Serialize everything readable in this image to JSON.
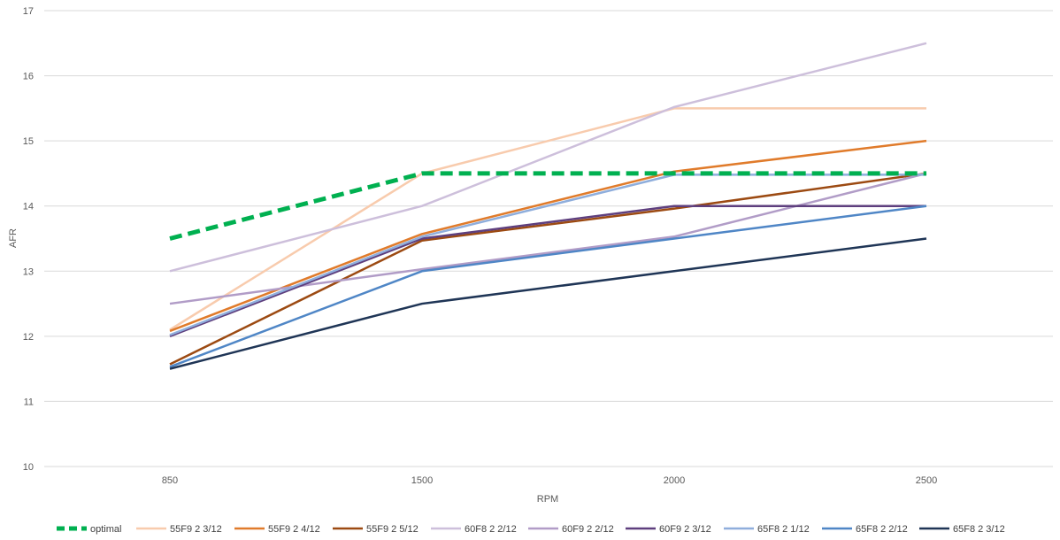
{
  "chart_data": {
    "type": "line",
    "title": "",
    "xlabel": "RPM",
    "ylabel": "AFR",
    "categories": [
      "850",
      "1500",
      "2000",
      "2500"
    ],
    "ylim": [
      10,
      17
    ],
    "yticks": [
      "10",
      "11",
      "12",
      "13",
      "14",
      "15",
      "16",
      "17"
    ],
    "grid": true,
    "legend_position": "bottom",
    "series": [
      {
        "name": "optimal",
        "values": [
          13.5,
          14.5,
          14.5,
          14.5
        ],
        "color": "#00B050",
        "dashed": true
      },
      {
        "name": "55F9 2 3/12",
        "values": [
          12.1,
          14.5,
          15.5,
          15.5
        ],
        "color": "#F8CBAD",
        "dashed": false
      },
      {
        "name": "55F9 2 4/12",
        "values": [
          12.08,
          13.57,
          14.53,
          15.0
        ],
        "color": "#E07B2B",
        "dashed": false
      },
      {
        "name": "55F9 2 5/12",
        "values": [
          11.57,
          13.47,
          13.96,
          14.5
        ],
        "color": "#9C4A12",
        "dashed": false
      },
      {
        "name": "60F8 2 2/12",
        "values": [
          13.0,
          14.0,
          15.52,
          16.5
        ],
        "color": "#CDBFDB",
        "dashed": false
      },
      {
        "name": "60F9 2 2/12",
        "values": [
          12.5,
          13.03,
          13.53,
          14.5
        ],
        "color": "#B19CC7",
        "dashed": false
      },
      {
        "name": "60F9 2 3/12",
        "values": [
          12.0,
          13.5,
          14.0,
          14.0
        ],
        "color": "#5E3F7E",
        "dashed": false
      },
      {
        "name": "65F8 2 1/12",
        "values": [
          12.02,
          13.53,
          14.48,
          14.48
        ],
        "color": "#8FAEDC",
        "dashed": false
      },
      {
        "name": "65F8 2 2/12",
        "values": [
          11.53,
          13.0,
          13.5,
          14.0
        ],
        "color": "#4F86C6",
        "dashed": false
      },
      {
        "name": "65F8 2 3/12",
        "values": [
          11.5,
          12.5,
          13.0,
          13.5
        ],
        "color": "#1F3556",
        "dashed": false
      }
    ]
  }
}
